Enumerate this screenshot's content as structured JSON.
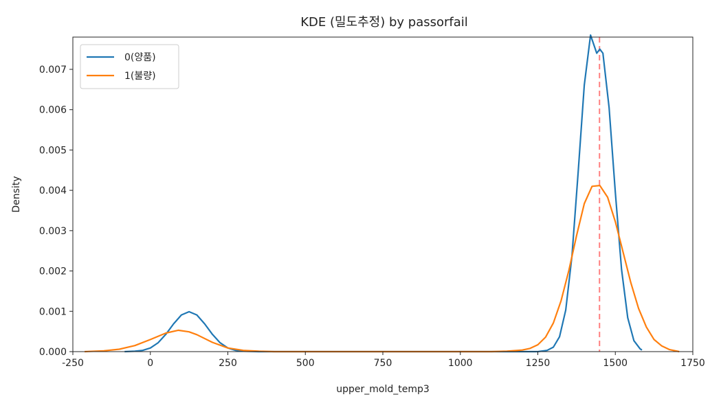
{
  "chart_data": {
    "type": "line",
    "title": "KDE (밀도추정) by passorfail",
    "xlabel": "upper_mold_temp3",
    "ylabel": "Density",
    "xlim": [
      -250,
      1750
    ],
    "ylim": [
      0,
      0.0078
    ],
    "xticks": [
      -250,
      0,
      250,
      500,
      750,
      1000,
      1250,
      1500,
      1750
    ],
    "xtick_labels": [
      "-250",
      "0",
      "250",
      "500",
      "750",
      "1000",
      "1250",
      "1500",
      "1750"
    ],
    "yticks": [
      0,
      0.001,
      0.002,
      0.003,
      0.004,
      0.005,
      0.006,
      0.007
    ],
    "ytick_labels": [
      "0.000",
      "0.001",
      "0.002",
      "0.003",
      "0.004",
      "0.005",
      "0.006",
      "0.007"
    ],
    "grid": false,
    "legend_position": "top-left",
    "reference_line": {
      "x": 1449,
      "color": "#ff7f7f",
      "style": "dashed"
    },
    "series": [
      {
        "name": "0(양품)",
        "color": "#1f77b4",
        "x": [
          -83,
          -50,
          -25,
          0,
          25,
          50,
          75,
          100,
          125,
          150,
          175,
          200,
          225,
          250,
          275,
          300,
          350,
          400,
          500,
          600,
          700,
          800,
          900,
          1000,
          1100,
          1200,
          1250,
          1280,
          1300,
          1320,
          1340,
          1360,
          1380,
          1400,
          1420,
          1440,
          1450,
          1460,
          1480,
          1500,
          1520,
          1540,
          1560,
          1580,
          1586
        ],
        "y": [
          0.0,
          1e-05,
          3e-05,
          9e-05,
          0.00022,
          0.00043,
          0.00069,
          0.00091,
          0.00099,
          0.00091,
          0.00069,
          0.00043,
          0.00022,
          9e-05,
          3e-05,
          1e-05,
          0.0,
          0.0,
          0.0,
          0.0,
          0.0,
          0.0,
          0.0,
          0.0,
          0.0,
          0.0,
          0.0,
          3e-05,
          0.00011,
          0.00037,
          0.00103,
          0.00236,
          0.00443,
          0.00661,
          0.00785,
          0.0074,
          0.0075,
          0.0074,
          0.00605,
          0.00394,
          0.00204,
          0.00084,
          0.00027,
          7e-05,
          4e-05
        ]
      },
      {
        "name": "1(불량)",
        "color": "#ff7f0e",
        "x": [
          -212,
          -150,
          -100,
          -50,
          0,
          50,
          90,
          125,
          150,
          200,
          250,
          300,
          350,
          400,
          500,
          600,
          700,
          800,
          900,
          1000,
          1100,
          1150,
          1200,
          1225,
          1250,
          1275,
          1300,
          1325,
          1350,
          1375,
          1400,
          1425,
          1450,
          1475,
          1500,
          1525,
          1550,
          1575,
          1600,
          1625,
          1650,
          1675,
          1706
        ],
        "y": [
          0.0,
          2e-05,
          6e-05,
          0.00015,
          0.0003,
          0.00046,
          0.00053,
          0.00049,
          0.00042,
          0.00023,
          9e-05,
          3e-05,
          1e-05,
          0.0,
          0.0,
          0.0,
          0.0,
          0.0,
          0.0,
          0.0,
          0.0,
          1e-05,
          4e-05,
          8e-05,
          0.00017,
          0.00036,
          0.00071,
          0.00126,
          0.00201,
          0.00288,
          0.00367,
          0.0041,
          0.00412,
          0.00383,
          0.00322,
          0.00247,
          0.00171,
          0.00107,
          0.00061,
          0.0003,
          0.00014,
          5e-05,
          0.0
        ]
      }
    ]
  }
}
